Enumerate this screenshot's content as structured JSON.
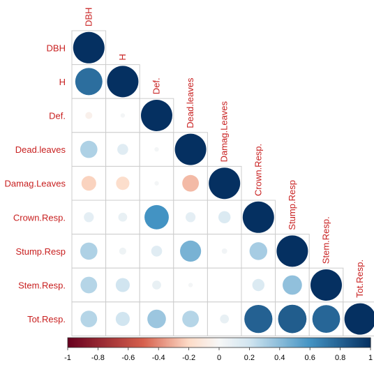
{
  "chart_data": {
    "type": "heatmap",
    "title": "",
    "variables": [
      "DBH",
      "H",
      "Def.",
      "Dead.leaves",
      "Damag.Leaves",
      "Crown.Resp.",
      "Stump.Resp",
      "Stem.Resp.",
      "Tot.Resp."
    ],
    "matrix_lower": [
      [
        1.0
      ],
      [
        0.75,
        1.0
      ],
      [
        -0.05,
        0.02,
        1.0
      ],
      [
        0.3,
        0.12,
        0.02,
        1.0
      ],
      [
        -0.22,
        -0.18,
        0.02,
        -0.28,
        1.0
      ],
      [
        0.1,
        0.08,
        0.6,
        0.1,
        0.15,
        1.0
      ],
      [
        0.3,
        0.05,
        0.12,
        0.45,
        0.03,
        0.32,
        1.0
      ],
      [
        0.28,
        0.2,
        0.08,
        0.02,
        0.0,
        0.15,
        0.38,
        1.0
      ],
      [
        0.28,
        0.2,
        0.35,
        0.28,
        0.08,
        0.8,
        0.82,
        0.78,
        1.0
      ]
    ],
    "colorbar": {
      "ticks": [
        "-1",
        "-0.8",
        "-0.6",
        "-0.4",
        "-0.2",
        "0",
        "0.2",
        "0.4",
        "0.6",
        "0.8",
        "1"
      ],
      "range": [
        -1,
        1
      ],
      "colors": {
        "neg_strong": "#67001F",
        "neg_mid": "#D6604D",
        "neg_light": "#FDDBC7",
        "zero": "#F7F7F7",
        "pos_light": "#D1E5F0",
        "pos_mid": "#4393C3",
        "pos_strong": "#053061"
      }
    },
    "label_color": "#C82020",
    "grid_color": "#CCCCCC"
  }
}
